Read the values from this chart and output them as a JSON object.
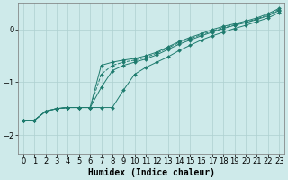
{
  "background_color": "#ceeaea",
  "grid_color": "#aed0d0",
  "line_color": "#1e7b6e",
  "xlabel": "Humidex (Indice chaleur)",
  "xlim": [
    -0.5,
    23.5
  ],
  "ylim": [
    -2.35,
    0.5
  ],
  "yticks": [
    0,
    -1,
    -2
  ],
  "xticks": [
    0,
    1,
    2,
    3,
    4,
    5,
    6,
    7,
    8,
    9,
    10,
    11,
    12,
    13,
    14,
    15,
    16,
    17,
    18,
    19,
    20,
    21,
    22,
    23
  ],
  "lines": [
    {
      "x": [
        0,
        1,
        2,
        3,
        4,
        5,
        6,
        7,
        8,
        9,
        10,
        11,
        12,
        13,
        14,
        15,
        16,
        17,
        18,
        19,
        20,
        21,
        22,
        23
      ],
      "y": [
        -1.72,
        -1.72,
        -1.55,
        -1.5,
        -1.48,
        -1.48,
        -1.48,
        -1.48,
        -1.48,
        -1.15,
        -0.85,
        -0.72,
        -0.62,
        -0.52,
        -0.4,
        -0.3,
        -0.2,
        -0.12,
        -0.05,
        0.02,
        0.08,
        0.15,
        0.22,
        0.32
      ],
      "style": "-",
      "marker": "D",
      "markersize": 2.0
    },
    {
      "x": [
        0,
        1,
        2,
        3,
        4,
        5,
        6,
        7,
        8,
        9,
        10,
        11,
        12,
        13,
        14,
        15,
        16,
        17,
        18,
        19,
        20,
        21,
        22,
        23
      ],
      "y": [
        -1.72,
        -1.72,
        -1.55,
        -1.5,
        -1.48,
        -1.48,
        -1.48,
        -1.1,
        -0.78,
        -0.68,
        -0.62,
        -0.56,
        -0.48,
        -0.38,
        -0.28,
        -0.2,
        -0.12,
        -0.05,
        0.02,
        0.08,
        0.13,
        0.19,
        0.26,
        0.36
      ],
      "style": "-",
      "marker": "D",
      "markersize": 2.0
    },
    {
      "x": [
        0,
        1,
        2,
        3,
        4,
        5,
        6,
        7,
        8,
        9,
        10,
        11,
        12,
        13,
        14,
        15,
        16,
        17,
        18,
        19,
        20,
        21,
        22,
        23
      ],
      "y": [
        -1.72,
        -1.72,
        -1.55,
        -1.5,
        -1.48,
        -1.48,
        -1.48,
        -0.85,
        -0.68,
        -0.62,
        -0.58,
        -0.53,
        -0.45,
        -0.35,
        -0.25,
        -0.17,
        -0.1,
        -0.03,
        0.04,
        0.09,
        0.14,
        0.2,
        0.28,
        0.38
      ],
      "style": "--",
      "marker": "D",
      "markersize": 2.0
    },
    {
      "x": [
        0,
        1,
        2,
        3,
        4,
        5,
        6,
        7,
        8,
        9,
        10,
        11,
        12,
        13,
        14,
        15,
        16,
        17,
        18,
        19,
        20,
        21,
        22,
        23
      ],
      "y": [
        -1.72,
        -1.72,
        -1.55,
        -1.5,
        -1.48,
        -1.48,
        -1.48,
        -0.68,
        -0.62,
        -0.58,
        -0.55,
        -0.5,
        -0.43,
        -0.33,
        -0.23,
        -0.15,
        -0.08,
        0.0,
        0.06,
        0.11,
        0.16,
        0.22,
        0.3,
        0.4
      ],
      "style": "-",
      "marker": "D",
      "markersize": 2.0
    }
  ],
  "xlabel_fontsize": 7,
  "tick_fontsize": 6
}
